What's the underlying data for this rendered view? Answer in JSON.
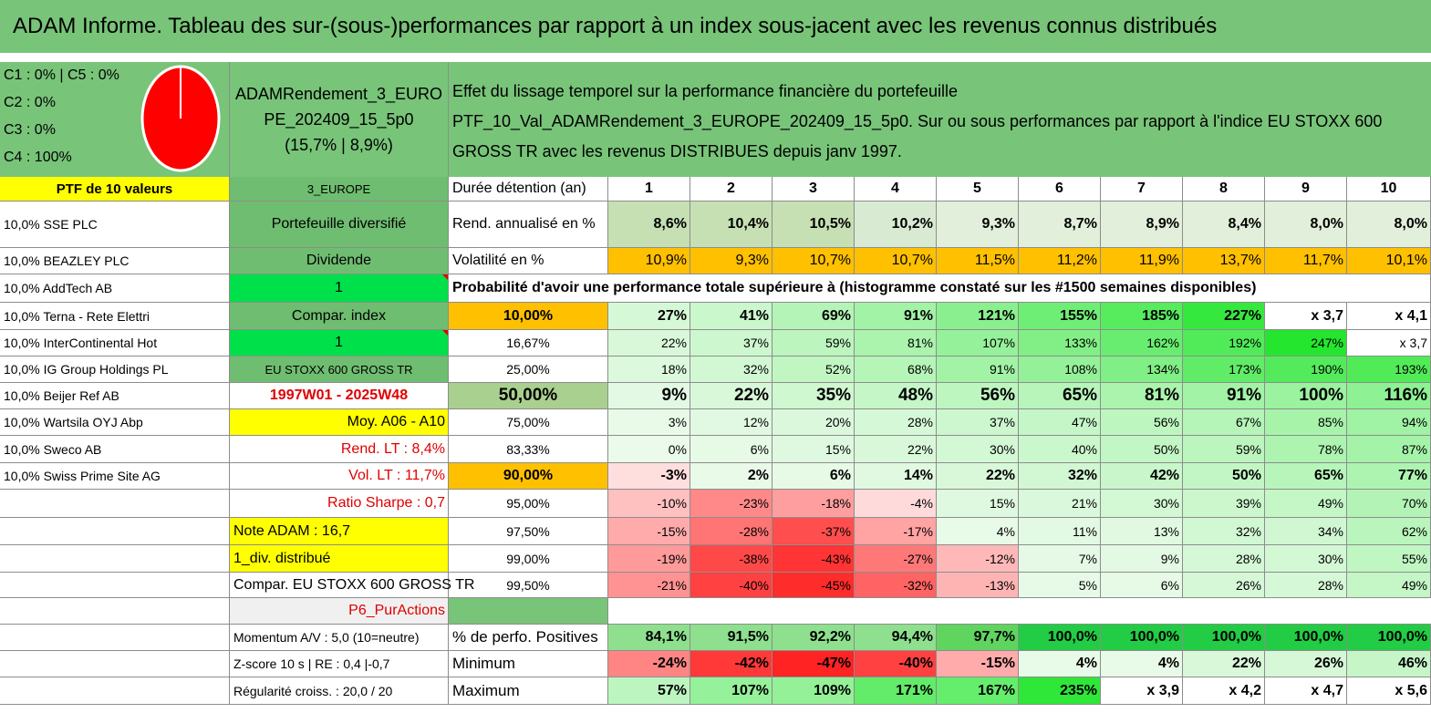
{
  "title": "ADAM Informe. Tableau des sur-(sous-)performances par rapport à un index sous-jacent avec les revenus connus distribués",
  "legend": {
    "lines": [
      "C1 : 0% | C5 : 0%",
      "C2 : 0%",
      "C3 : 0%",
      "C4 : 100%"
    ],
    "pie_c4_share": 100
  },
  "portfolio": {
    "name_lines": [
      "ADAMRendement_3_EURO",
      "PE_202409_15_5p0",
      "(15,7% | 8,9%)"
    ],
    "region": "3_EUROPE"
  },
  "description": {
    "line1": "Effet du lissage temporel sur la performance financière du portefeuille",
    "line2": "PTF_10_Val_ADAMRendement_3_EUROPE_202409_15_5p0. Sur ou sous performances par rapport à l'indice EU STOXX 600",
    "line3": "GROSS TR avec les revenus DISTRIBUES depuis janv 1997."
  },
  "holdings_header": "PTF de 10 valeurs",
  "holdings": [
    "10,0% SSE PLC",
    "10,0% BEAZLEY PLC",
    "10,0% AddTech AB",
    "10,0% Terna - Rete Elettri",
    "10,0% InterContinental Hot",
    "10,0% IG Group Holdings PL",
    "10,0% Beijer Ref AB",
    "10,0% Wartsila OYJ Abp",
    "10,0% Sweco AB",
    "10,0% Swiss Prime Site AG"
  ],
  "info": {
    "diversified": "Portefeuille diversifié",
    "dividend": "Dividende",
    "one_a": "1",
    "compar_index": "Compar. index",
    "one_b": "1",
    "index_name": "EU STOXX 600 GROSS TR",
    "period": "1997W01 - 2025W48",
    "moy": "Moy. A06 - A10",
    "rend_lt": "Rend. LT : 8,4%",
    "vol_lt": "Vol. LT : 11,7%",
    "sharpe": "Ratio Sharpe : 0,7",
    "note": "Note ADAM : 16,7",
    "div": "1_div. distribué",
    "compar": "Compar. EU STOXX 600 GROSS TR",
    "p6": "P6_PurActions",
    "momentum": "Momentum A/V : 5,0 (10=neutre)",
    "zscore": "Z-score 10 s | RE : 0,4 |-0,7",
    "regularite": "Régularité croiss. : 20,0 / 20"
  },
  "table": {
    "duration_label": "Durée détention (an)",
    "years": [
      "1",
      "2",
      "3",
      "4",
      "5",
      "6",
      "7",
      "8",
      "9",
      "10"
    ],
    "rend_label": "Rend. annualisé en %",
    "rend": [
      "8,6%",
      "10,4%",
      "10,5%",
      "10,2%",
      "9,3%",
      "8,7%",
      "8,9%",
      "8,4%",
      "8,0%",
      "8,0%"
    ],
    "vol_label": "Volatilité en %",
    "vol": [
      "10,9%",
      "9,3%",
      "10,7%",
      "10,7%",
      "11,5%",
      "11,2%",
      "11,9%",
      "13,7%",
      "11,7%",
      "10,1%"
    ],
    "prob_header": "Probabilité d'avoir une performance totale supérieure à (histogramme constaté sur les #1500 semaines disponibles)",
    "prob_rows": [
      {
        "p": "10,00%",
        "v": [
          "27%",
          "41%",
          "69%",
          "91%",
          "121%",
          "155%",
          "185%",
          "227%",
          "x 3,7",
          "x 4,1"
        ]
      },
      {
        "p": "16,67%",
        "v": [
          "22%",
          "37%",
          "59%",
          "81%",
          "107%",
          "133%",
          "162%",
          "192%",
          "247%",
          "x 3,7"
        ]
      },
      {
        "p": "25,00%",
        "v": [
          "18%",
          "32%",
          "52%",
          "68%",
          "91%",
          "108%",
          "134%",
          "173%",
          "190%",
          "193%"
        ]
      },
      {
        "p": "50,00%",
        "v": [
          "9%",
          "22%",
          "35%",
          "48%",
          "56%",
          "65%",
          "81%",
          "91%",
          "100%",
          "116%"
        ]
      },
      {
        "p": "75,00%",
        "v": [
          "3%",
          "12%",
          "20%",
          "28%",
          "37%",
          "47%",
          "56%",
          "67%",
          "85%",
          "94%"
        ]
      },
      {
        "p": "83,33%",
        "v": [
          "0%",
          "6%",
          "15%",
          "22%",
          "30%",
          "40%",
          "50%",
          "59%",
          "78%",
          "87%"
        ]
      },
      {
        "p": "90,00%",
        "v": [
          "-3%",
          "2%",
          "6%",
          "14%",
          "22%",
          "32%",
          "42%",
          "50%",
          "65%",
          "77%"
        ]
      },
      {
        "p": "95,00%",
        "v": [
          "-10%",
          "-23%",
          "-18%",
          "-4%",
          "15%",
          "21%",
          "30%",
          "39%",
          "49%",
          "70%"
        ]
      },
      {
        "p": "97,50%",
        "v": [
          "-15%",
          "-28%",
          "-37%",
          "-17%",
          "4%",
          "11%",
          "13%",
          "32%",
          "34%",
          "62%"
        ]
      },
      {
        "p": "99,00%",
        "v": [
          "-19%",
          "-38%",
          "-43%",
          "-27%",
          "-12%",
          "7%",
          "9%",
          "28%",
          "30%",
          "55%"
        ]
      },
      {
        "p": "99,50%",
        "v": [
          "-21%",
          "-40%",
          "-45%",
          "-32%",
          "-13%",
          "5%",
          "6%",
          "26%",
          "28%",
          "49%"
        ]
      }
    ],
    "pos_label": "% de perfo. Positives",
    "pos": [
      "84,1%",
      "91,5%",
      "92,2%",
      "94,4%",
      "97,7%",
      "100,0%",
      "100,0%",
      "100,0%",
      "100,0%",
      "100,0%"
    ],
    "min_label": "Minimum",
    "min": [
      "-24%",
      "-42%",
      "-47%",
      "-40%",
      "-15%",
      "4%",
      "4%",
      "22%",
      "26%",
      "46%"
    ],
    "max_label": "Maximum",
    "max": [
      "57%",
      "107%",
      "109%",
      "171%",
      "167%",
      "235%",
      "x 3,9",
      "x 4,2",
      "x 4,7",
      "x 5,6"
    ]
  },
  "colors": {
    "header_green": "#78c479",
    "mid_green": "#6fbd70",
    "pale_green_header": "#c4dfb3",
    "yellow": "#ffff00",
    "bright_green": "#00e04a",
    "orange": "#ffc000",
    "prob_green": "#a9d08e"
  }
}
